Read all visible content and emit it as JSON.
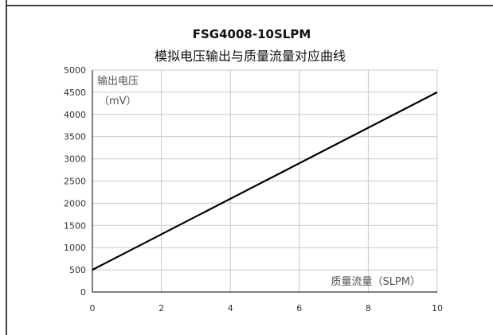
{
  "chart_data": {
    "type": "line",
    "title": "FSG4008-10SLPM",
    "subtitle": "模拟电压输出与质量流量对应曲线",
    "xlabel": "质量流量（SLPM）",
    "ylabel_line1": "输出电压",
    "ylabel_line2": "（mV）",
    "xlim": [
      0,
      10
    ],
    "ylim": [
      0,
      5000
    ],
    "xticks": [
      0,
      2,
      4,
      6,
      8,
      10
    ],
    "yticks": [
      0,
      500,
      1000,
      1500,
      2000,
      2500,
      3000,
      3500,
      4000,
      4500,
      5000
    ],
    "grid": true,
    "series": [
      {
        "x": [
          0,
          10
        ],
        "y": [
          500,
          4500
        ]
      }
    ],
    "line_color": "#000000",
    "grid_color": "#c8c8c8",
    "frame_color": "#000000"
  }
}
